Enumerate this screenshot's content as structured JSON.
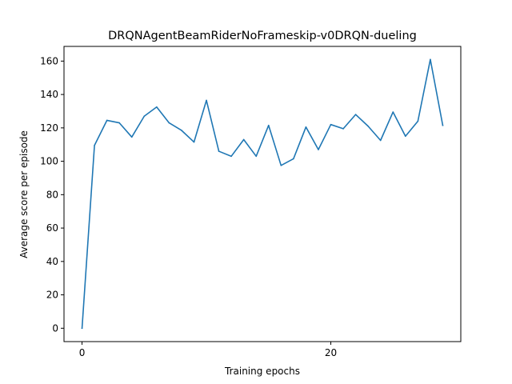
{
  "chart_data": {
    "type": "line",
    "title": "DRQNAgentBeamRiderNoFrameskip-v0DRQN-dueling",
    "xlabel": "Training epochs",
    "ylabel": "Average score per episode",
    "xlim": [
      -1.45,
      30.45
    ],
    "ylim": [
      -8.0,
      168.8
    ],
    "xticks": [
      0,
      20
    ],
    "yticks": [
      0,
      20,
      40,
      60,
      80,
      100,
      120,
      140,
      160
    ],
    "grid": false,
    "legend": "none",
    "series": [
      {
        "color": "#1f77b4",
        "x": [
          0,
          1,
          2,
          3,
          4,
          5,
          6,
          7,
          8,
          9,
          10,
          11,
          12,
          13,
          14,
          15,
          16,
          17,
          18,
          19,
          20,
          21,
          22,
          23,
          24,
          25,
          26,
          27,
          28,
          29
        ],
        "y": [
          0,
          109.5,
          124.5,
          123,
          114.5,
          127,
          132.5,
          123,
          118.5,
          111.5,
          136.5,
          106,
          103,
          113,
          103,
          121.5,
          97.5,
          101.5,
          120.5,
          107,
          122,
          119.5,
          128,
          121,
          112.5,
          129.5,
          115,
          124,
          161,
          121.5
        ]
      }
    ]
  }
}
